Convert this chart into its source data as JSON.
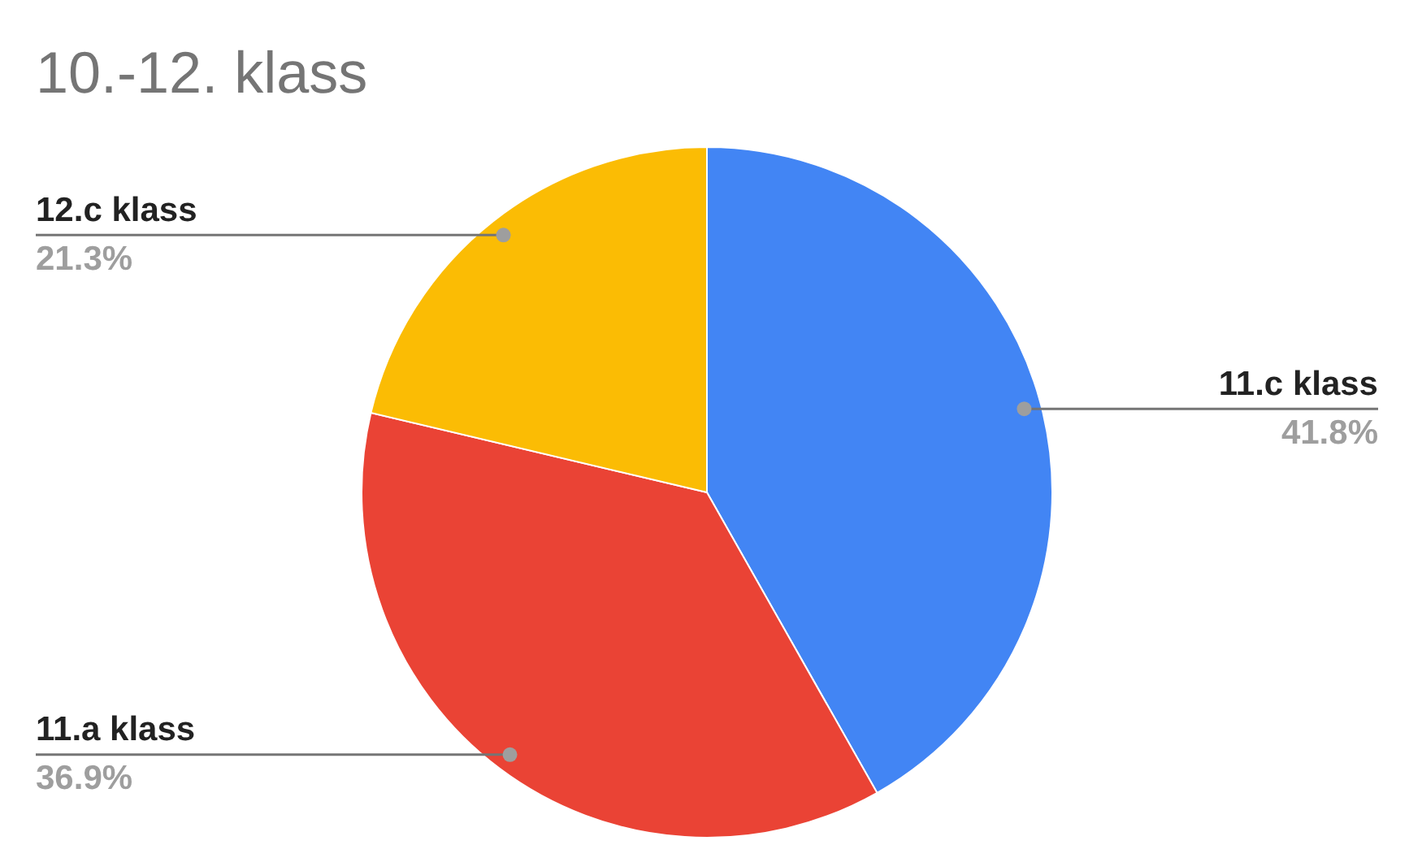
{
  "chart_data": {
    "type": "pie",
    "title": "10.-12. klass",
    "categories": [
      "11.c klass",
      "11.a klass",
      "12.c klass"
    ],
    "values": [
      41.8,
      36.9,
      21.3
    ],
    "colors": [
      "#4285f4",
      "#ea4335",
      "#fbbc04"
    ],
    "value_labels": [
      "41.8%",
      "36.9%",
      "21.3%"
    ],
    "legend": false
  }
}
